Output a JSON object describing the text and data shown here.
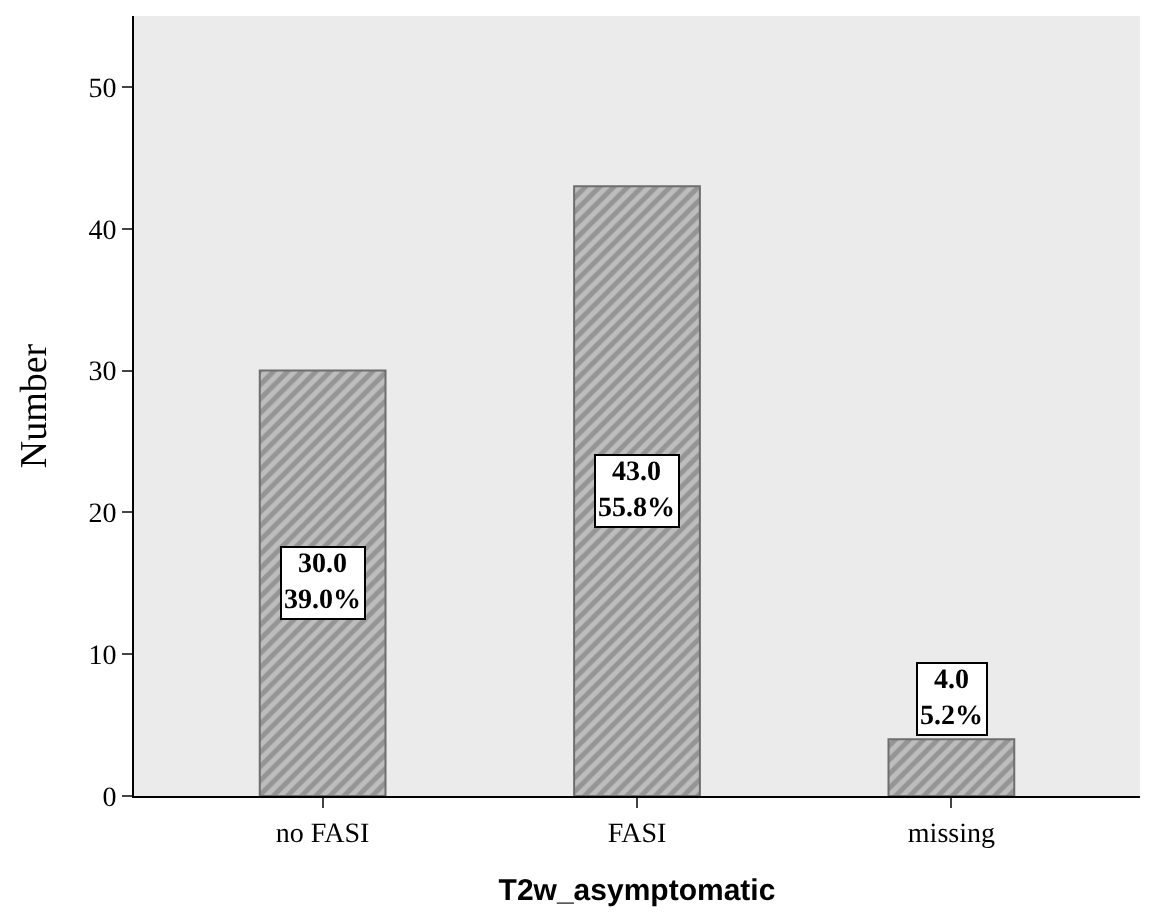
{
  "chart_data": {
    "type": "bar",
    "xlabel": "T2w_asymptomatic",
    "ylabel": "Number",
    "categories": [
      "no FASI",
      "FASI",
      "missing"
    ],
    "values": [
      30.0,
      43.0,
      4.0
    ],
    "value_labels": [
      "30.0\n39.0%",
      "43.0\n55.8%",
      "4.0\n5.2%"
    ],
    "color": "#6e6e6e",
    "ylim": [
      0,
      55
    ],
    "yticks": [
      0,
      10,
      20,
      30,
      40,
      50
    ],
    "grid": false,
    "legend": false
  }
}
